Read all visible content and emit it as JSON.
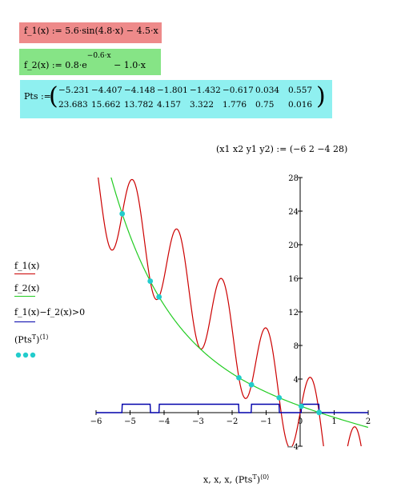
{
  "definitions": {
    "f1": "f_1(x) := 5.6·sin(4.8·x) − 4.5·x",
    "f2_main": "f_2(x) := 0.8·e",
    "f2_exp": "−0.6·x",
    "f2_tail": "− 1.0·x",
    "pts_label": "Pts :="
  },
  "pts_matrix": {
    "row1": [
      "−5.231",
      "−4.407",
      "−4.148",
      "−1.801",
      "−1.432",
      "−0.617",
      "0.034",
      "0.557"
    ],
    "row2": [
      "23.683",
      "15.662",
      "13.782",
      "4.157",
      "3.322",
      "1.776",
      "0.75",
      "0.016"
    ]
  },
  "range_def": {
    "lhs": "(x1  x2  y1  y2)",
    "rhs": ":= (−6  2  −4  28)"
  },
  "legend": {
    "f1": "f_1(x)",
    "f2": "f_2(x)",
    "diff": "f_1(x)−f_2(x)>0",
    "pts": "(Pts",
    "pts_sup": "T",
    "pts_ind": "⟨1⟩"
  },
  "x_axis_label": "x, x, x, (Pts",
  "x_axis_label_sup": "T",
  "x_axis_label_ind": "⟨0⟩",
  "colors": {
    "f1": "#cc0000",
    "f2": "#22cc22",
    "diff": "#0000aa",
    "pts": "#22cccc",
    "f1box": "#ee8a8a",
    "f2box": "#86e486",
    "ptsbox": "#8ff0f0"
  },
  "chart_data": {
    "type": "line",
    "xlim": [
      -6,
      2
    ],
    "ylim": [
      -4,
      28
    ],
    "x_ticks": [
      "−6",
      "−5",
      "−4",
      "−3",
      "−2",
      "−1",
      "0",
      "1",
      "2"
    ],
    "y_ticks": [
      "−4",
      "4",
      "8",
      "12",
      "16",
      "20",
      "24",
      "28"
    ],
    "series": [
      {
        "name": "f_1(x)",
        "formula": "5.6*sin(4.8*x) - 4.5*x"
      },
      {
        "name": "f_2(x)",
        "formula": "0.8*exp(-0.6*x) - 1.0*x"
      },
      {
        "name": "f_1(x)−f_2(x)>0",
        "formula": "f1(x) > f2(x)"
      },
      {
        "name": "Pts",
        "x": [
          -5.231,
          -4.407,
          -4.148,
          -1.801,
          -1.432,
          -0.617,
          0.034,
          0.557
        ],
        "y": [
          23.683,
          15.662,
          13.782,
          4.157,
          3.322,
          1.776,
          0.75,
          0.016
        ]
      }
    ],
    "grid": false
  }
}
